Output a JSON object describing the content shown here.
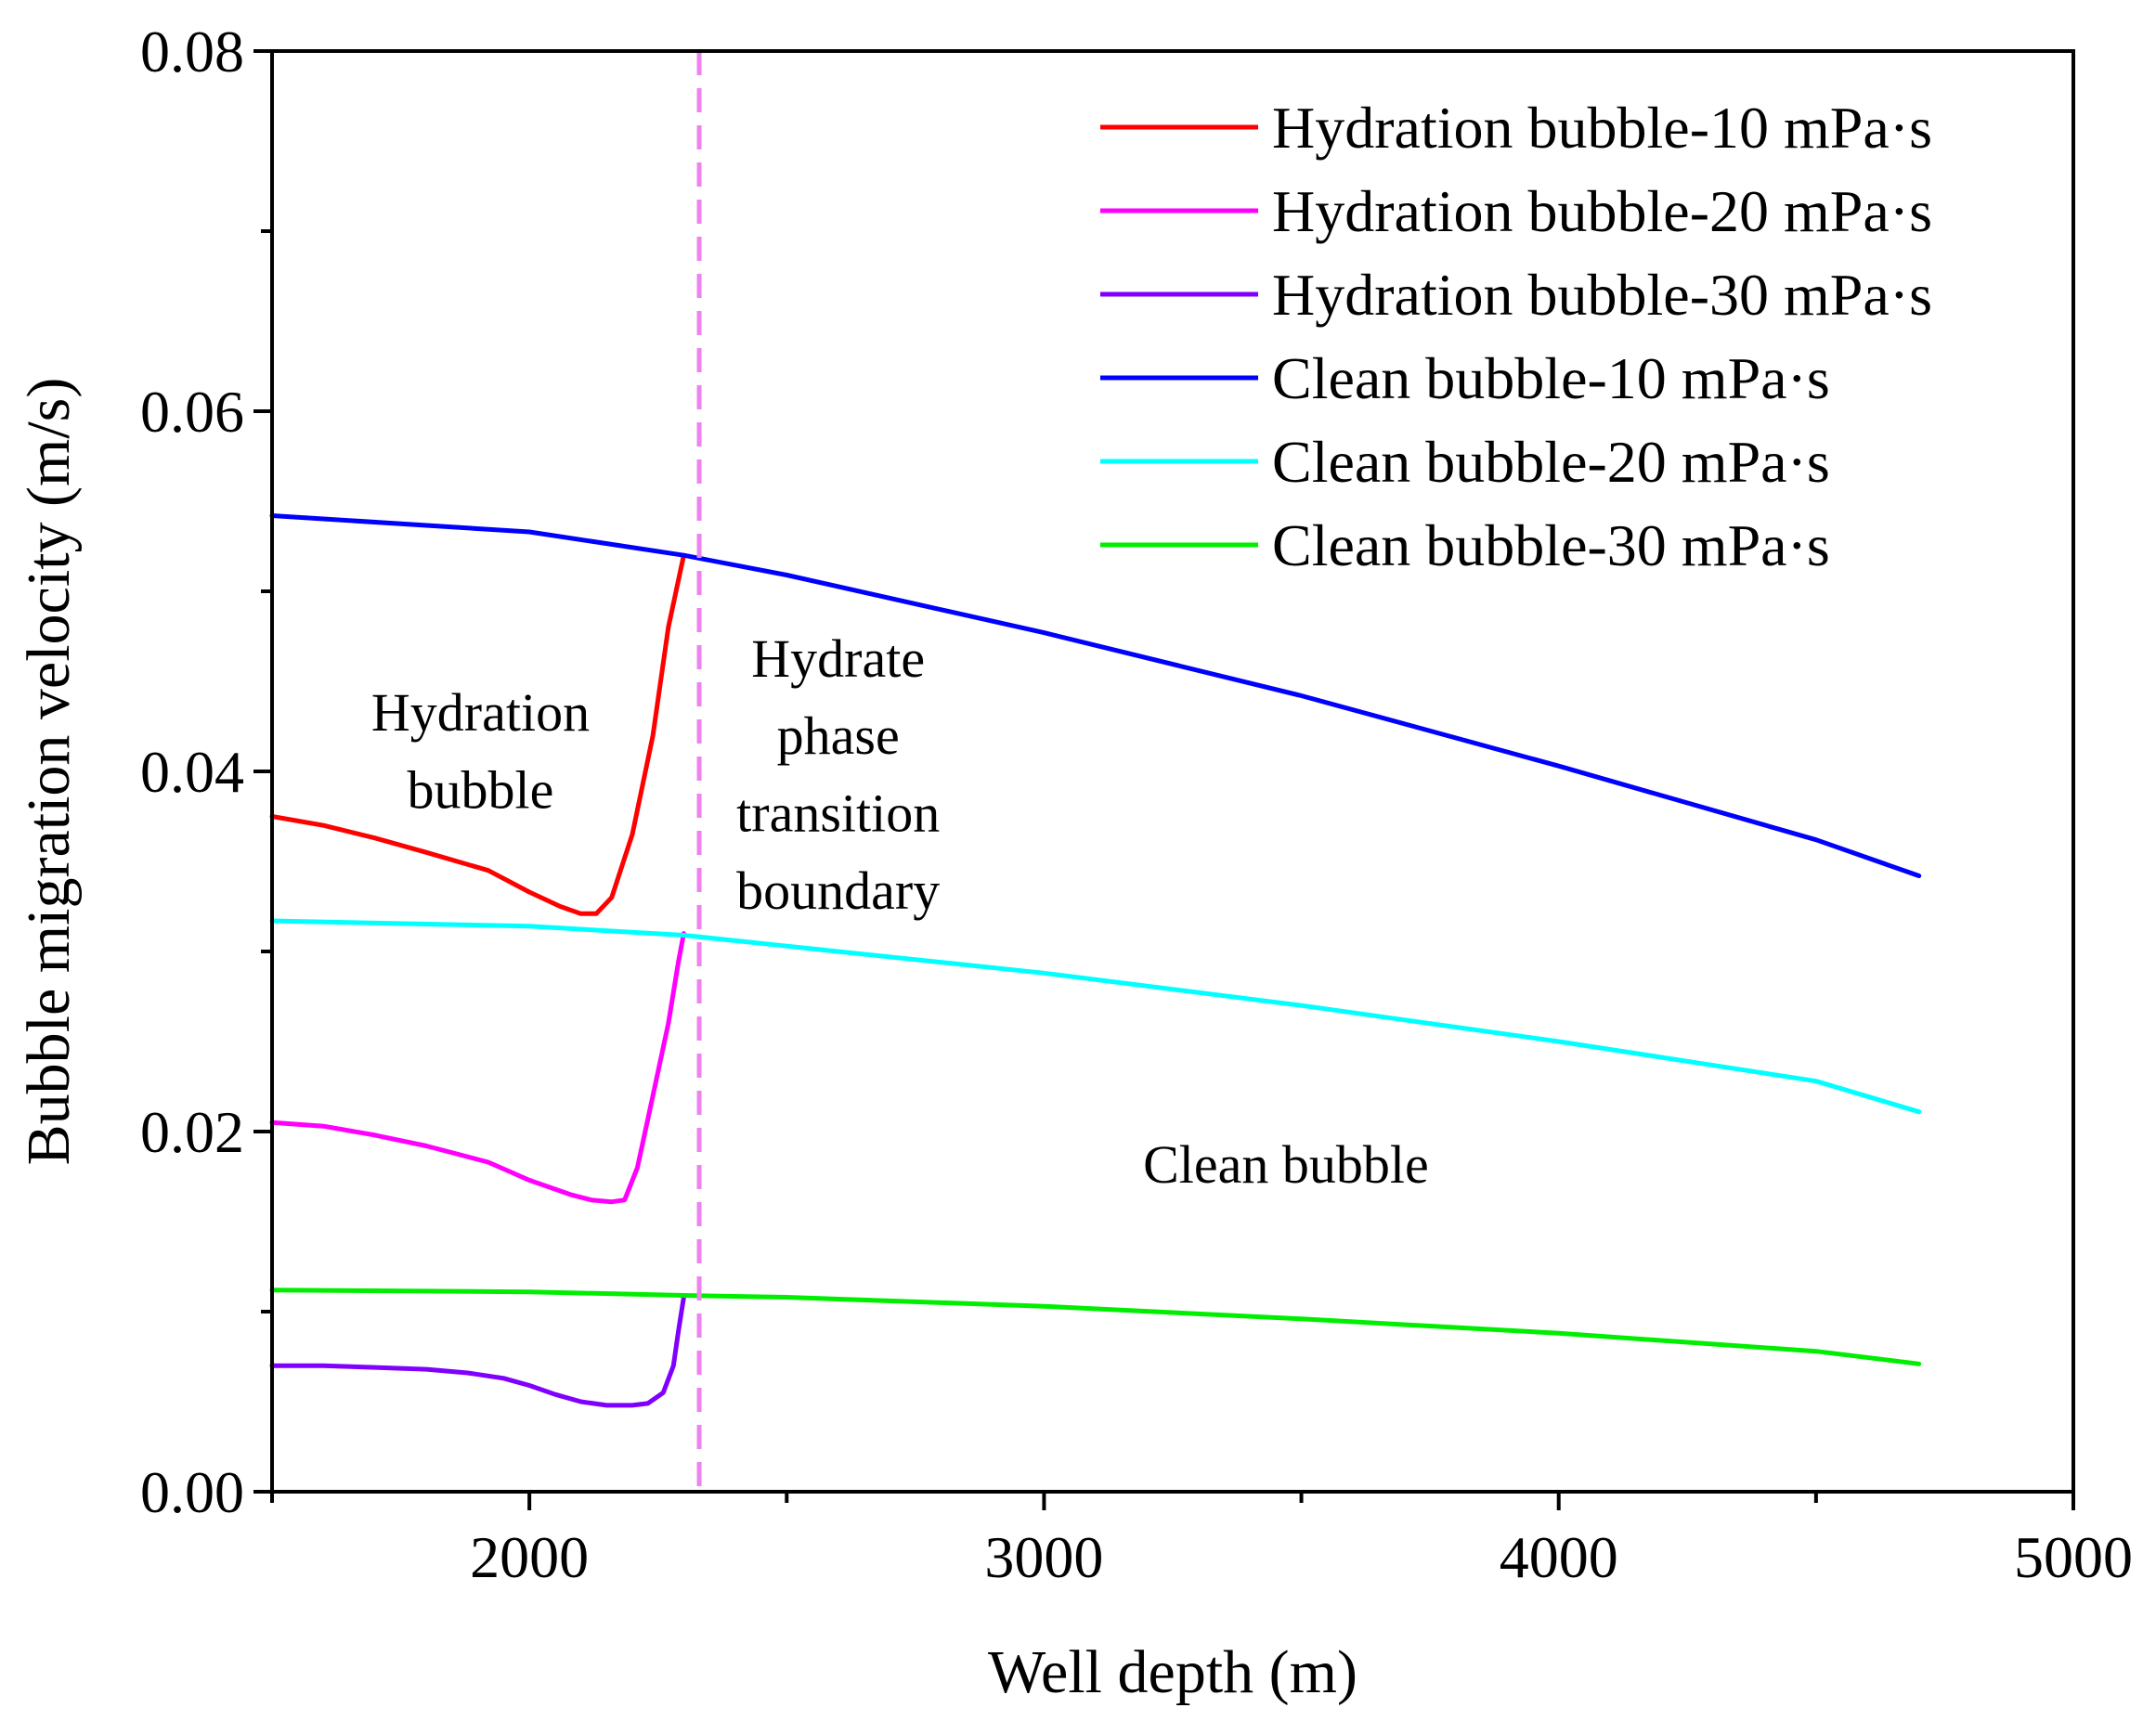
{
  "chart_data": {
    "type": "line",
    "title": "",
    "xlabel": "Well depth (m)",
    "ylabel": "Bubble migration velocity (m/s)",
    "xlim": [
      1500,
      5000
    ],
    "ylim": [
      0,
      0.08
    ],
    "x_major_ticks": [
      2000,
      3000,
      4000,
      5000
    ],
    "x_tick_labels": [
      "2000",
      "3000",
      "4000",
      "5000"
    ],
    "x_minor_ticks": [
      1500,
      2500,
      3500,
      4500
    ],
    "y_major_ticks": [
      0,
      0.02,
      0.04,
      0.06,
      0.08
    ],
    "y_tick_labels": [
      "0.00",
      "0.02",
      "0.04",
      "0.06",
      "0.08"
    ],
    "y_minor_ticks": [
      0.01,
      0.03,
      0.05,
      0.07
    ],
    "grid": false,
    "legend_position": "top-right",
    "series": [
      {
        "name": "Hydration bubble-10 mPa·s",
        "color": "#ff0000",
        "x": [
          1500,
          1600,
          1700,
          1800,
          1920,
          2000,
          2060,
          2100,
          2130,
          2160,
          2200,
          2240,
          2270,
          2300
        ],
        "y": [
          0.0375,
          0.037,
          0.0363,
          0.0355,
          0.0345,
          0.0333,
          0.0325,
          0.0321,
          0.0321,
          0.033,
          0.0365,
          0.042,
          0.048,
          0.052
        ]
      },
      {
        "name": "Hydration bubble-20 mPa·s",
        "color": "#ff00ff",
        "x": [
          1500,
          1600,
          1700,
          1800,
          1920,
          2000,
          2080,
          2120,
          2160,
          2185,
          2210,
          2240,
          2270,
          2290,
          2300
        ],
        "y": [
          0.0205,
          0.0203,
          0.0198,
          0.0192,
          0.0183,
          0.0173,
          0.0165,
          0.0162,
          0.0161,
          0.0162,
          0.018,
          0.022,
          0.026,
          0.0295,
          0.031
        ]
      },
      {
        "name": "Hydration bubble-30 mPa·s",
        "color": "#7f00ff",
        "x": [
          1500,
          1600,
          1700,
          1800,
          1880,
          1950,
          2000,
          2050,
          2100,
          2150,
          2200,
          2230,
          2260,
          2280,
          2290,
          2300
        ],
        "y": [
          0.007,
          0.007,
          0.0069,
          0.0068,
          0.0066,
          0.0063,
          0.0059,
          0.0054,
          0.005,
          0.0048,
          0.0048,
          0.0049,
          0.0055,
          0.007,
          0.009,
          0.0108
        ]
      },
      {
        "name": "Clean bubble-10 mPa·s",
        "color": "#0000ff",
        "x": [
          1500,
          2000,
          2300,
          2500,
          3000,
          3500,
          4000,
          4500,
          4700
        ],
        "y": [
          0.0542,
          0.0533,
          0.052,
          0.0509,
          0.0477,
          0.0442,
          0.0403,
          0.0362,
          0.0342
        ]
      },
      {
        "name": "Clean bubble-20 mPa·s",
        "color": "#00ffff",
        "x": [
          1500,
          2000,
          2300,
          2500,
          3000,
          3500,
          4000,
          4500,
          4700
        ],
        "y": [
          0.0317,
          0.0314,
          0.0309,
          0.0303,
          0.0288,
          0.027,
          0.025,
          0.0228,
          0.0211
        ]
      },
      {
        "name": "Clean bubble-30 mPa·s",
        "color": "#00ee00",
        "x": [
          1500,
          2000,
          2300,
          2500,
          3000,
          3500,
          4000,
          4500,
          4700
        ],
        "y": [
          0.0112,
          0.0111,
          0.0109,
          0.0108,
          0.0103,
          0.0096,
          0.0088,
          0.0078,
          0.0071
        ]
      }
    ],
    "boundary": {
      "x": 2330,
      "color": "#ee82ee",
      "style": "dashed"
    },
    "annotations": [
      {
        "text": "Hydration",
        "x": 1905,
        "y": 0.0433
      },
      {
        "text": "bubble",
        "x": 1905,
        "y": 0.039
      },
      {
        "text": "Hydrate",
        "x": 2600,
        "y": 0.0463
      },
      {
        "text": "phase",
        "x": 2600,
        "y": 0.042
      },
      {
        "text": "transition",
        "x": 2600,
        "y": 0.0377
      },
      {
        "text": "boundary",
        "x": 2600,
        "y": 0.0334
      },
      {
        "text": "Clean bubble",
        "x": 3470,
        "y": 0.0182
      }
    ]
  }
}
